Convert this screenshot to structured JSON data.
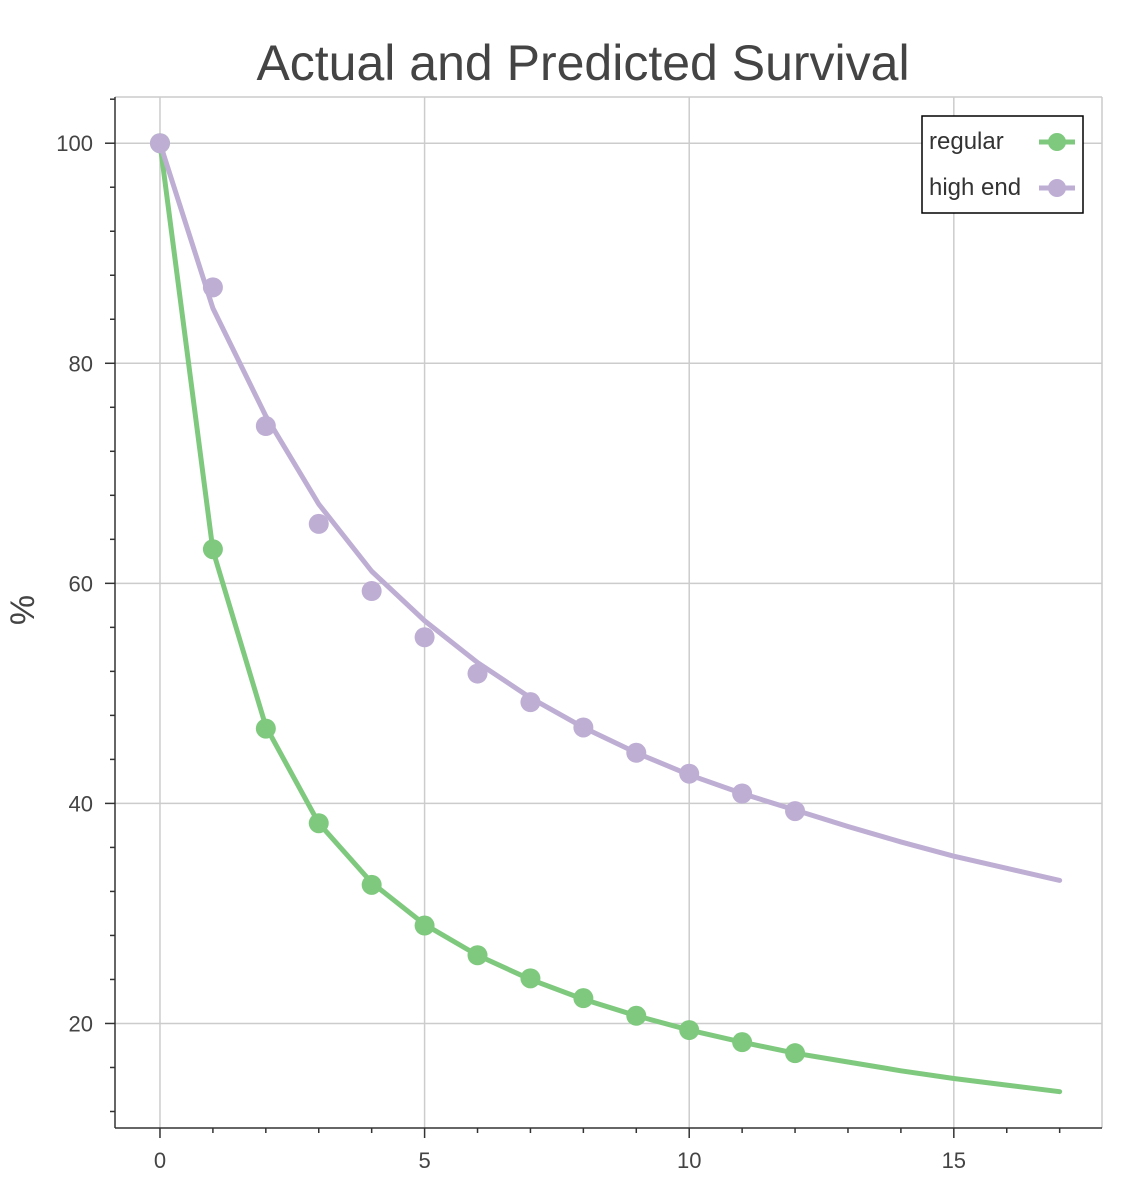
{
  "chart_data": {
    "type": "line",
    "title": "Actual and Predicted Survival",
    "xlabel": "",
    "ylabel": "%",
    "xlim": [
      -0.85,
      17.8
    ],
    "ylim": [
      10.5,
      104.2
    ],
    "x_ticks": [
      0,
      5,
      10,
      15
    ],
    "y_ticks": [
      20,
      40,
      60,
      80,
      100
    ],
    "grid": true,
    "legend_position": "top-right",
    "series": [
      {
        "name": "regular",
        "color": "#7fc97f",
        "points_x": [
          0,
          1,
          2,
          3,
          4,
          5,
          6,
          7,
          8,
          9,
          10,
          11,
          12
        ],
        "points_y": [
          100,
          63.1,
          46.8,
          38.2,
          32.6,
          28.9,
          26.2,
          24.1,
          22.3,
          20.7,
          19.4,
          18.3,
          17.3
        ],
        "curve_x": [
          0,
          1,
          2,
          3,
          4,
          5,
          6,
          7,
          8,
          9,
          10,
          11,
          12,
          13,
          14,
          15,
          16,
          17
        ],
        "curve_y": [
          100,
          63.0,
          47.0,
          38.2,
          32.8,
          29.0,
          26.2,
          24.0,
          22.2,
          20.7,
          19.4,
          18.3,
          17.3,
          16.5,
          15.7,
          15.0,
          14.4,
          13.8
        ]
      },
      {
        "name": "high end",
        "color": "#beaed4",
        "points_x": [
          0,
          1,
          2,
          3,
          4,
          5,
          6,
          7,
          8,
          9,
          10,
          11,
          12
        ],
        "points_y": [
          100,
          86.9,
          74.3,
          65.4,
          59.3,
          55.1,
          51.8,
          49.2,
          46.9,
          44.6,
          42.7,
          40.9,
          39.3
        ],
        "curve_x": [
          0,
          1,
          2,
          3,
          4,
          5,
          6,
          7,
          8,
          9,
          10,
          11,
          12,
          13,
          14,
          15,
          16,
          17
        ],
        "curve_y": [
          100,
          85.0,
          75.2,
          67.2,
          61.1,
          56.6,
          52.8,
          49.6,
          46.9,
          44.6,
          42.6,
          40.9,
          39.4,
          37.9,
          36.5,
          35.2,
          34.1,
          33.0
        ]
      }
    ]
  }
}
